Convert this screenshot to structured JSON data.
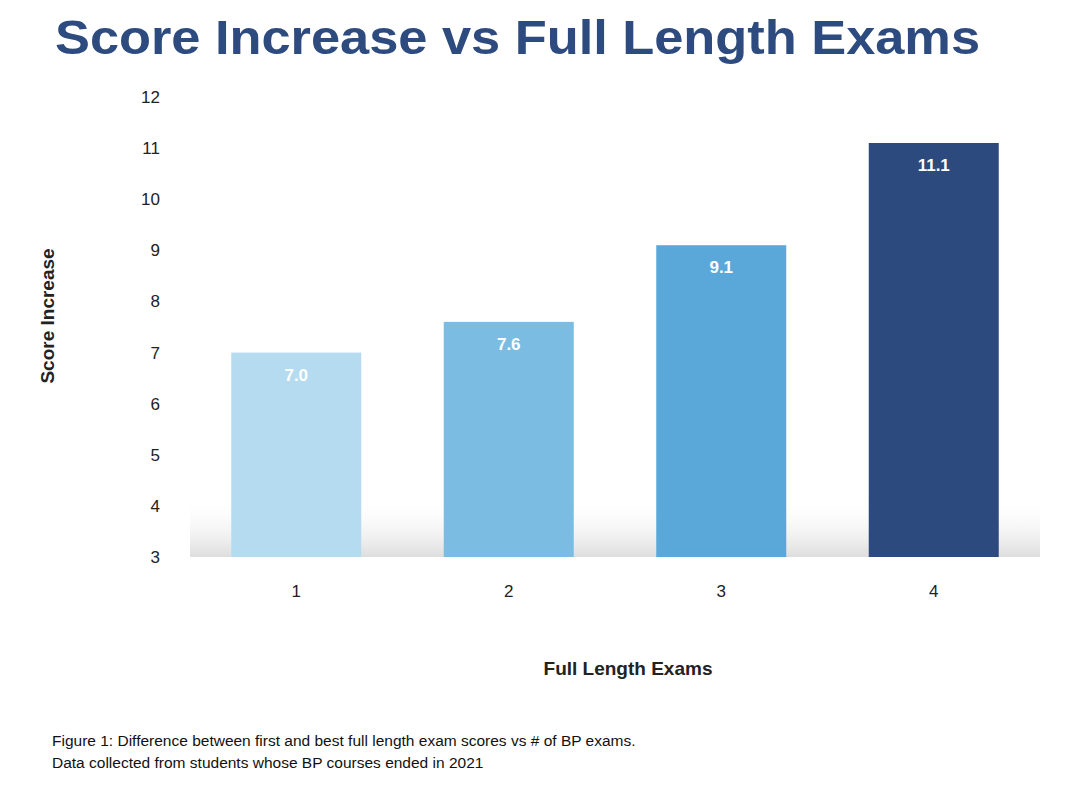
{
  "chart_data": {
    "type": "bar",
    "title": "Score Increase vs Full Length Exams",
    "x_label": "Full Length Exams",
    "y_label": "Score Increase",
    "categories": [
      "1",
      "2",
      "3",
      "4"
    ],
    "values": [
      7.0,
      7.6,
      9.1,
      11.1
    ],
    "value_labels": [
      "7.0",
      "7.6",
      "9.1",
      "11.1"
    ],
    "colors": [
      "#b4dbf0",
      "#7bbde2",
      "#5aa8da",
      "#2c4a7d"
    ],
    "ylim": [
      3,
      12
    ],
    "yticks": [
      3,
      4,
      5,
      6,
      7,
      8,
      9,
      10,
      11,
      12
    ],
    "grid": false,
    "data_labels": true,
    "annotations": [
      "Figure 1: Difference between first and best full length exam scores vs # of BP exams.",
      "Data collected from students whose BP courses ended in 2021"
    ]
  }
}
